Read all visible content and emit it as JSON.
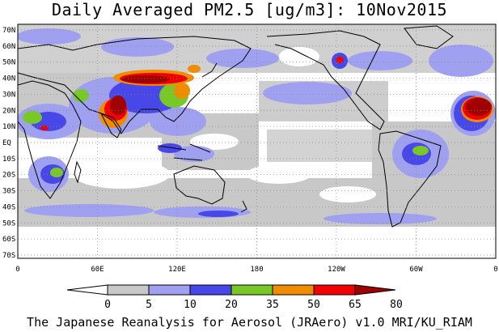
{
  "title": "Daily Averaged PM2.5 [ug/m3]: 10Nov2015",
  "credit": "The Japanese Reanalysis for Aerosol (JRAero) v1.0 MRI/KU_RIAM",
  "lat_labels": [
    "70N",
    "60N",
    "50N",
    "40N",
    "30N",
    "20N",
    "10N",
    "EQ",
    "10S",
    "20S",
    "30S",
    "40S",
    "50S",
    "60S",
    "70S"
  ],
  "lon_labels": [
    "0",
    "60E",
    "120E",
    "180",
    "120W",
    "60W",
    "0"
  ],
  "colorbar": {
    "ticks": [
      "0",
      "5",
      "10",
      "20",
      "35",
      "50",
      "65",
      "80"
    ],
    "colors": [
      "#ffffff",
      "#c8c8c8",
      "#a0a0f0",
      "#4848e8",
      "#78c828",
      "#f08c00",
      "#f00000",
      "#a00000"
    ]
  }
}
